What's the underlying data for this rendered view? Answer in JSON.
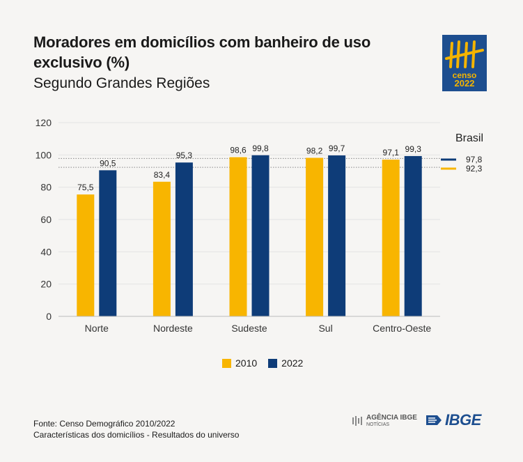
{
  "header": {
    "title": "Moradores em domicílios com banheiro de uso exclusivo (%)",
    "subtitle": "Segundo Grandes Regiões"
  },
  "logo": {
    "word": "censo",
    "year": "2022",
    "icon": "censo-tally-marks-icon"
  },
  "chart_data": {
    "type": "bar",
    "title": "Moradores em domicílios com banheiro de uso exclusivo (%)",
    "subtitle": "Segundo Grandes Regiões",
    "categories": [
      "Norte",
      "Nordeste",
      "Sudeste",
      "Sul",
      "Centro-Oeste"
    ],
    "series": [
      {
        "name": "2010",
        "color": "#f8b500",
        "values": [
          75.5,
          83.4,
          98.6,
          98.2,
          97.1
        ],
        "labels": [
          "75,5",
          "83,4",
          "98,6",
          "98,2",
          "97,1"
        ]
      },
      {
        "name": "2022",
        "color": "#0e3c78",
        "values": [
          90.5,
          95.3,
          99.8,
          99.7,
          99.3
        ],
        "labels": [
          "90,5",
          "95,3",
          "99,8",
          "99,7",
          "99,3"
        ]
      }
    ],
    "yticks": [
      0,
      20,
      40,
      60,
      80,
      100,
      120
    ],
    "ylim": [
      0,
      120
    ],
    "grid": true,
    "legend_position": "bottom-center",
    "reference": {
      "title": "Brasil",
      "lines": [
        {
          "series": "2022",
          "value": 97.8,
          "label": "97,8",
          "color": "#0e3c78"
        },
        {
          "series": "2010",
          "value": 92.3,
          "label": "92,3",
          "color": "#f8b500"
        }
      ]
    }
  },
  "footer": {
    "source": "Fonte: Censo Demográfico 2010/2022",
    "note": "Características dos domicílios - Resultados do universo"
  },
  "brand": {
    "agencia_line1": "AGÊNCIA IBGE",
    "agencia_line2": "NOTÍCIAS",
    "ibge": "IBGE"
  }
}
